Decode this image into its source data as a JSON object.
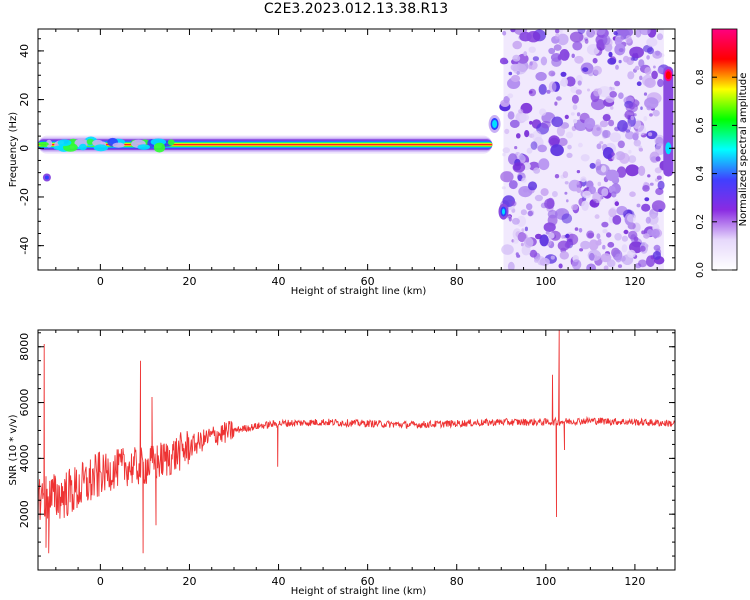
{
  "title": "C2E3.2023.012.13.38.R13",
  "chart_data": [
    {
      "type": "heatmap",
      "name": "spectrogram",
      "xlabel": "Height of straight line (km)",
      "ylabel": "Frequency (Hz)",
      "xlim": [
        -14,
        129
      ],
      "ylim": [
        -50,
        49
      ],
      "xticks": [
        0,
        20,
        40,
        60,
        80,
        100,
        120
      ],
      "yticks": [
        -40,
        -20,
        0,
        20,
        40
      ],
      "colorbar": {
        "label": "Normalized spectral amplitude",
        "range": [
          0.0,
          1.0
        ],
        "ticks": [
          "0.0",
          "0.2",
          "0.4",
          "0.6",
          "0.8"
        ],
        "tick_values": [
          0.0,
          0.2,
          0.4,
          0.6,
          0.8
        ],
        "colormap": "gist_rainbow",
        "colors": [
          "#ffffff",
          "#e6d8fb",
          "#8a2be2",
          "#4040ff",
          "#00ffff",
          "#00ff00",
          "#ffff00",
          "#ff0000",
          "#ff0080"
        ]
      },
      "ridge": {
        "frequency_hz": 1.5,
        "x_range": [
          -14,
          88
        ],
        "peak_amplitude": 0.9
      },
      "spike": {
        "x": 88.5,
        "frequency_hz": 10,
        "x_low": 90.5,
        "frequency_low_hz": -26
      },
      "noise_region": {
        "x_range": [
          90.5,
          126.5
        ],
        "amplitude_range": [
          0.05,
          0.3
        ]
      },
      "edge_feature": {
        "x": 127.5,
        "frequency_range_hz": [
          -10,
          32
        ]
      }
    },
    {
      "type": "line",
      "name": "snr",
      "xlabel": "Height of straight line (km)",
      "ylabel": "SNR (10 * v/v)",
      "xlim": [
        -14,
        129
      ],
      "ylim": [
        0,
        8600
      ],
      "xticks": [
        0,
        20,
        40,
        60,
        80,
        100,
        120
      ],
      "yticks": [
        2000,
        4000,
        6000,
        8000
      ],
      "color": "#ee3333",
      "trend": {
        "x": [
          -14,
          -10,
          -5,
          0,
          5,
          10,
          15,
          20,
          25,
          30,
          35,
          40,
          50,
          60,
          70,
          80,
          90,
          100,
          110,
          120,
          129
        ],
        "y": [
          2600,
          2600,
          2900,
          3400,
          3700,
          3700,
          4000,
          4400,
          4800,
          5000,
          5150,
          5250,
          5300,
          5250,
          5200,
          5250,
          5300,
          5300,
          5350,
          5300,
          5250
        ]
      },
      "spikes": [
        {
          "x": -12.6,
          "y": 8100
        },
        {
          "x": -12.2,
          "y": 800
        },
        {
          "x": -11.6,
          "y": 600
        },
        {
          "x": 9.0,
          "y": 7500
        },
        {
          "x": 9.6,
          "y": 600
        },
        {
          "x": 11.6,
          "y": 6200
        },
        {
          "x": 12.5,
          "y": 1600
        },
        {
          "x": 39.8,
          "y": 3700
        },
        {
          "x": 101.5,
          "y": 7000
        },
        {
          "x": 102.4,
          "y": 1900
        },
        {
          "x": 103.0,
          "y": 8600
        },
        {
          "x": 104.2,
          "y": 4300
        }
      ]
    }
  ]
}
